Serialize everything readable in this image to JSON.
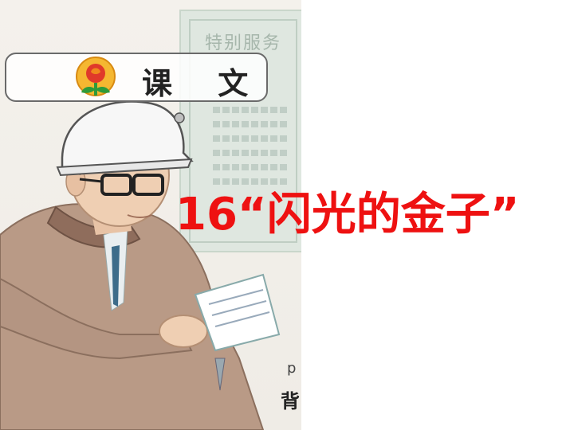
{
  "banner": {
    "label": "课 文",
    "logo_icon": "flower-sprout-logo-icon"
  },
  "certificate": {
    "title_text": "特别服务"
  },
  "title": {
    "text": "16“闪光的金子”"
  },
  "page_fragment": {
    "top": "p",
    "bottom": "背"
  },
  "colors": {
    "title": "#ee1111",
    "banner_border": "#6a6a6a",
    "logo_orange": "#f08a1c",
    "logo_green": "#2e9a3a",
    "logo_red": "#e03a2a"
  }
}
